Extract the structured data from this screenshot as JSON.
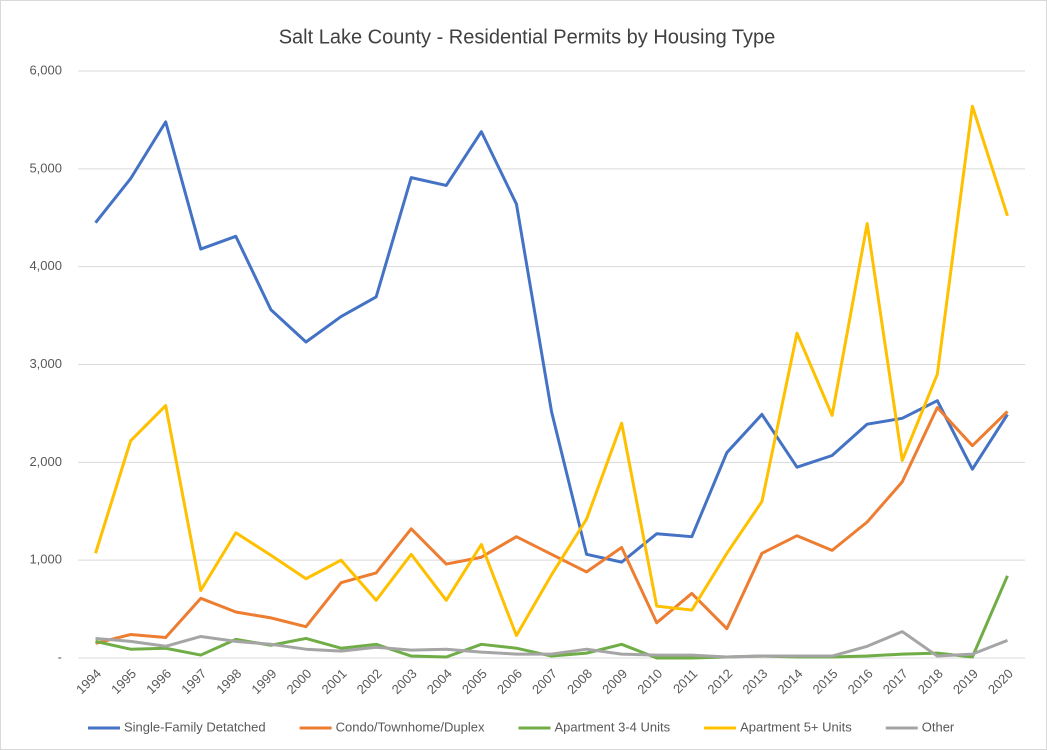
{
  "chart_data": {
    "type": "line",
    "title": "Salt Lake County - Residential Permits by Housing Type",
    "categories": [
      "1994",
      "1995",
      "1996",
      "1997",
      "1998",
      "1999",
      "2000",
      "2001",
      "2002",
      "2003",
      "2004",
      "2005",
      "2006",
      "2007",
      "2008",
      "2009",
      "2010",
      "2011",
      "2012",
      "2013",
      "2014",
      "2015",
      "2016",
      "2017",
      "2018",
      "2019",
      "2020"
    ],
    "series": [
      {
        "name": "Single-Family Detatched",
        "color": "#4472c4",
        "values": [
          4450,
          4900,
          5480,
          4180,
          4310,
          3560,
          3230,
          3490,
          3690,
          4910,
          4830,
          5380,
          4640,
          2520,
          1060,
          980,
          1270,
          1240,
          2100,
          2490,
          1950,
          2070,
          2390,
          2450,
          2630,
          1930,
          2490
        ]
      },
      {
        "name": "Condo/Townhome/Duplex",
        "color": "#ed7d31",
        "values": [
          150,
          240,
          210,
          610,
          470,
          410,
          320,
          770,
          870,
          1320,
          960,
          1030,
          1240,
          1060,
          880,
          1130,
          360,
          660,
          300,
          1070,
          1250,
          1100,
          1390,
          1800,
          2560,
          2170,
          2520
        ]
      },
      {
        "name": "Apartment 3-4 Units",
        "color": "#70ad47",
        "values": [
          170,
          90,
          100,
          30,
          190,
          130,
          200,
          100,
          140,
          20,
          10,
          140,
          100,
          20,
          50,
          140,
          0,
          0,
          10,
          20,
          10,
          10,
          20,
          40,
          50,
          10,
          840
        ]
      },
      {
        "name": "Apartment 5+ Units",
        "color": "#ffc000",
        "values": [
          1070,
          2220,
          2580,
          690,
          1280,
          1050,
          810,
          1000,
          590,
          1060,
          590,
          1160,
          230,
          850,
          1420,
          2400,
          530,
          490,
          1070,
          1600,
          3320,
          2480,
          4440,
          2020,
          2900,
          5640,
          4520
        ]
      },
      {
        "name": "Other",
        "color": "#a5a5a5",
        "values": [
          200,
          170,
          120,
          220,
          170,
          140,
          90,
          70,
          110,
          80,
          90,
          60,
          40,
          40,
          90,
          40,
          30,
          30,
          10,
          20,
          20,
          20,
          120,
          270,
          20,
          40,
          180
        ]
      }
    ],
    "ylim": [
      0,
      6000
    ],
    "yticks": [
      {
        "value": 0,
        "label": "-"
      },
      {
        "value": 1000,
        "label": "1,000"
      },
      {
        "value": 2000,
        "label": "2,000"
      },
      {
        "value": 3000,
        "label": "3,000"
      },
      {
        "value": 4000,
        "label": "4,000"
      },
      {
        "value": 5000,
        "label": "5,000"
      },
      {
        "value": 6000,
        "label": "6,000"
      }
    ],
    "grid": true,
    "legend": "bottom"
  }
}
